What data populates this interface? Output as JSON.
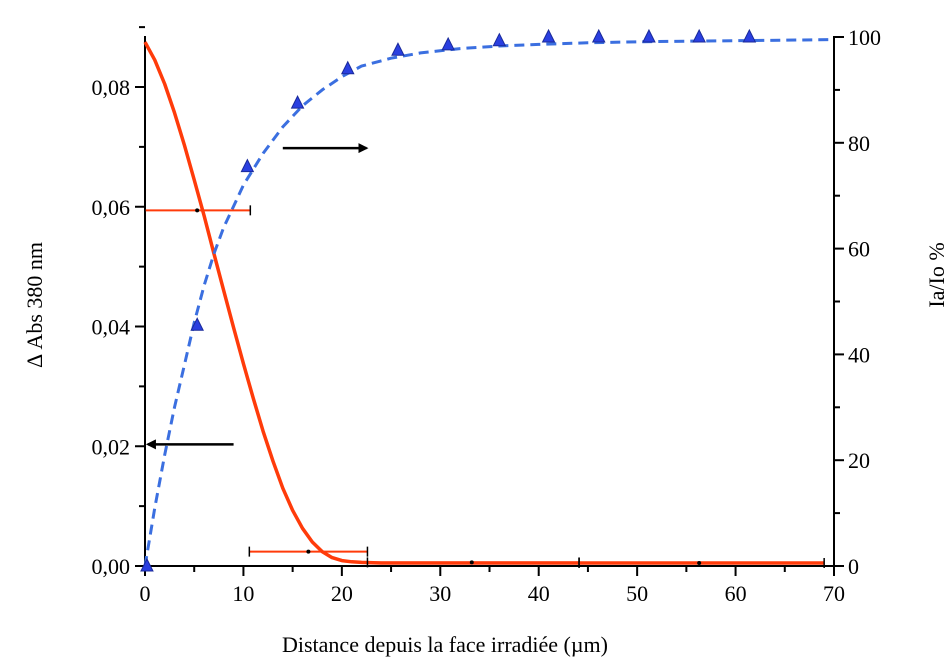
{
  "chart_data": {
    "type": "line",
    "title": "",
    "xlabel": "Distance depuis la face irradiée (µm)",
    "ylabel_left": "Δ Abs 380 nm",
    "ylabel_right": "Ia/Io %",
    "xlim": [
      0,
      70
    ],
    "ylim_left": [
      0,
      0.09
    ],
    "ylim_right": [
      0,
      100
    ],
    "x_ticks": [
      "0",
      "10",
      "20",
      "30",
      "40",
      "50",
      "60",
      "70"
    ],
    "y_left_ticks": [
      "0,00",
      "0,02",
      "0,04",
      "0,06",
      "0,08"
    ],
    "y_right_ticks": [
      "0",
      "20",
      "40",
      "60",
      "80",
      "100"
    ],
    "grid": false,
    "legend": "none",
    "series": [
      {
        "axis": "left",
        "style": "solid",
        "color": "#ff3b0a",
        "x": [
          0,
          1,
          2,
          3,
          4,
          5,
          6,
          7,
          8,
          9,
          10,
          11,
          12,
          13,
          14,
          15,
          16,
          17,
          18,
          19,
          20,
          21,
          22,
          24,
          26,
          30,
          40,
          50,
          60,
          69
        ],
        "y": [
          0.0875,
          0.0845,
          0.0805,
          0.0757,
          0.0703,
          0.0645,
          0.0585,
          0.0522,
          0.046,
          0.0398,
          0.0338,
          0.028,
          0.0225,
          0.0175,
          0.013,
          0.0093,
          0.0063,
          0.004,
          0.0024,
          0.0014,
          0.0009,
          0.0007,
          0.0006,
          0.0005,
          0.0005,
          0.0005,
          0.0005,
          0.0005,
          0.0005,
          0.0005
        ]
      },
      {
        "axis": "right",
        "style": "dashed",
        "color": "#3b6fe0",
        "x": [
          0,
          1,
          2,
          3,
          4,
          5,
          6,
          7,
          8,
          9,
          10,
          12,
          14,
          16,
          18,
          20,
          22,
          25,
          28,
          32,
          36,
          40,
          45,
          50,
          55,
          60,
          65,
          70
        ],
        "y": [
          0,
          11,
          21,
          30,
          38,
          46,
          53,
          59,
          64,
          68,
          72,
          78,
          83,
          87,
          90,
          92.5,
          94.5,
          96,
          97,
          97.8,
          98.3,
          98.6,
          98.9,
          99.1,
          99.2,
          99.3,
          99.4,
          99.5
        ]
      },
      {
        "axis": "right",
        "style": "markers",
        "marker": "triangle",
        "color": "#2a3fe0",
        "x": [
          0.2,
          5.3,
          10.4,
          15.5,
          20.6,
          25.7,
          30.8,
          36,
          41,
          46.1,
          51.2,
          56.3,
          61.4
        ],
        "y": [
          0,
          45.5,
          75.5,
          87.5,
          94,
          97.5,
          98.5,
          99.3,
          100,
          100,
          100,
          100,
          100
        ]
      }
    ],
    "error_bars": {
      "axis": "left",
      "color": "#ff3b0a",
      "items": [
        {
          "x": 5.3,
          "y": 0.0594,
          "xmin": 0,
          "xmax": 10.7
        },
        {
          "x": 16.6,
          "y": 0.0024,
          "xmin": 10.6,
          "xmax": 22.6
        },
        {
          "x": 33.2,
          "y": 0.0006,
          "xmin": 22.6,
          "xmax": 44.1
        },
        {
          "x": 56.3,
          "y": 0.0005,
          "xmin": 44.1,
          "xmax": 69
        }
      ]
    },
    "annotations": [
      {
        "type": "arrow",
        "direction": "right",
        "x": 14,
        "x2": 22.5,
        "y_right": 79,
        "meaning": "series belongs to right axis"
      },
      {
        "type": "arrow",
        "direction": "left",
        "x": 9,
        "x2": 0.3,
        "y_right": 23,
        "meaning": "series belongs to left axis"
      }
    ]
  }
}
